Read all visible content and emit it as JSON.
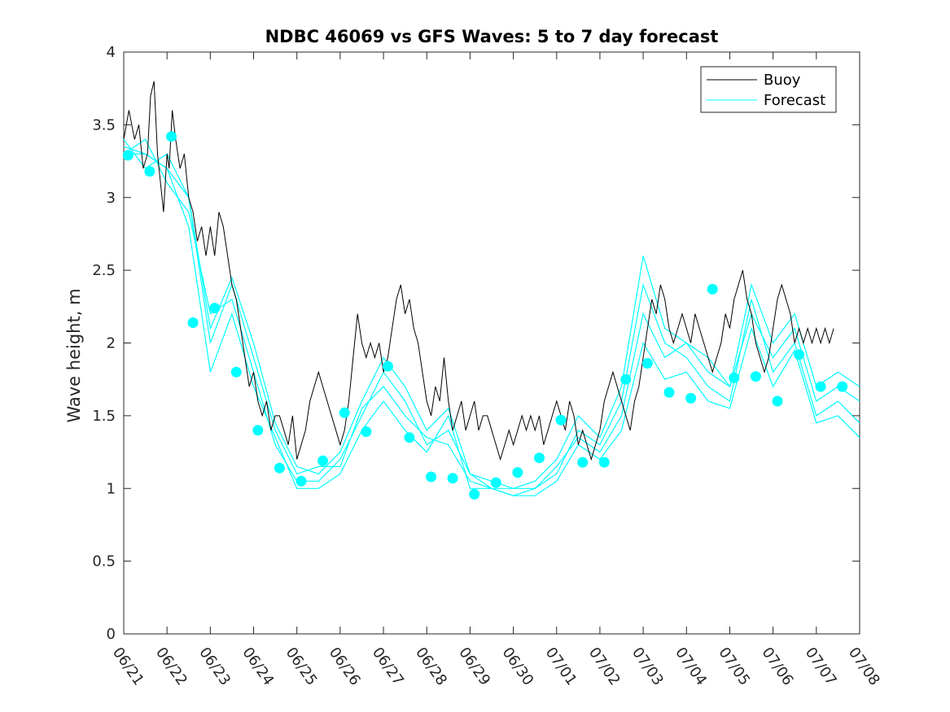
{
  "chart_data": {
    "type": "line",
    "title": "NDBC 46069 vs GFS Waves: 5 to 7 day forecast",
    "xlabel": "",
    "ylabel": "Wave height, m",
    "ylim": [
      0,
      4
    ],
    "yticks": [
      0,
      0.5,
      1,
      1.5,
      2,
      2.5,
      3,
      3.5,
      4
    ],
    "ytick_labels": [
      "0",
      "0.5",
      "1",
      "1.5",
      "2",
      "2.5",
      "3",
      "3.5",
      "4"
    ],
    "x_unit": "day offset from 06/21",
    "xlim": [
      0,
      17
    ],
    "xtick_labels": [
      "06/21",
      "06/22",
      "06/23",
      "06/24",
      "06/25",
      "06/26",
      "06/27",
      "06/28",
      "06/29",
      "06/30",
      "07/01",
      "07/02",
      "07/03",
      "07/04",
      "07/05",
      "07/06",
      "07/07",
      "07/08"
    ],
    "grid": false,
    "legend": {
      "position": "top-right",
      "entries": [
        {
          "label": "Buoy",
          "color": "#000000"
        },
        {
          "label": "Forecast",
          "color": "#00ffff"
        }
      ]
    },
    "colors": {
      "buoy": "#000000",
      "forecast": "#00ffff"
    },
    "buoy": {
      "name": "Buoy",
      "points": [
        [
          0.0,
          3.4
        ],
        [
          0.12,
          3.6
        ],
        [
          0.25,
          3.4
        ],
        [
          0.35,
          3.5
        ],
        [
          0.45,
          3.2
        ],
        [
          0.55,
          3.3
        ],
        [
          0.62,
          3.7
        ],
        [
          0.7,
          3.8
        ],
        [
          0.78,
          3.3
        ],
        [
          0.85,
          3.1
        ],
        [
          0.92,
          2.9
        ],
        [
          1.0,
          3.3
        ],
        [
          1.05,
          3.2
        ],
        [
          1.12,
          3.6
        ],
        [
          1.2,
          3.4
        ],
        [
          1.3,
          3.2
        ],
        [
          1.4,
          3.3
        ],
        [
          1.5,
          3.0
        ],
        [
          1.6,
          2.9
        ],
        [
          1.7,
          2.7
        ],
        [
          1.8,
          2.8
        ],
        [
          1.9,
          2.6
        ],
        [
          2.0,
          2.8
        ],
        [
          2.1,
          2.6
        ],
        [
          2.2,
          2.9
        ],
        [
          2.3,
          2.8
        ],
        [
          2.4,
          2.6
        ],
        [
          2.5,
          2.4
        ],
        [
          2.6,
          2.3
        ],
        [
          2.7,
          2.1
        ],
        [
          2.8,
          1.9
        ],
        [
          2.9,
          1.7
        ],
        [
          3.0,
          1.8
        ],
        [
          3.1,
          1.6
        ],
        [
          3.2,
          1.5
        ],
        [
          3.3,
          1.6
        ],
        [
          3.4,
          1.4
        ],
        [
          3.5,
          1.5
        ],
        [
          3.6,
          1.5
        ],
        [
          3.7,
          1.4
        ],
        [
          3.8,
          1.3
        ],
        [
          3.9,
          1.5
        ],
        [
          4.0,
          1.2
        ],
        [
          4.1,
          1.3
        ],
        [
          4.2,
          1.4
        ],
        [
          4.3,
          1.6
        ],
        [
          4.4,
          1.7
        ],
        [
          4.5,
          1.8
        ],
        [
          4.6,
          1.7
        ],
        [
          4.7,
          1.6
        ],
        [
          4.8,
          1.5
        ],
        [
          4.9,
          1.4
        ],
        [
          5.0,
          1.3
        ],
        [
          5.1,
          1.4
        ],
        [
          5.2,
          1.6
        ],
        [
          5.3,
          1.9
        ],
        [
          5.4,
          2.2
        ],
        [
          5.5,
          2.0
        ],
        [
          5.6,
          1.9
        ],
        [
          5.7,
          2.0
        ],
        [
          5.8,
          1.9
        ],
        [
          5.9,
          2.0
        ],
        [
          6.0,
          1.8
        ],
        [
          6.1,
          1.9
        ],
        [
          6.2,
          2.1
        ],
        [
          6.3,
          2.3
        ],
        [
          6.4,
          2.4
        ],
        [
          6.5,
          2.2
        ],
        [
          6.6,
          2.3
        ],
        [
          6.7,
          2.1
        ],
        [
          6.8,
          2.0
        ],
        [
          6.9,
          1.8
        ],
        [
          7.0,
          1.6
        ],
        [
          7.1,
          1.5
        ],
        [
          7.2,
          1.7
        ],
        [
          7.3,
          1.6
        ],
        [
          7.4,
          1.9
        ],
        [
          7.5,
          1.6
        ],
        [
          7.6,
          1.4
        ],
        [
          7.7,
          1.5
        ],
        [
          7.8,
          1.6
        ],
        [
          7.9,
          1.4
        ],
        [
          8.0,
          1.5
        ],
        [
          8.1,
          1.6
        ],
        [
          8.2,
          1.4
        ],
        [
          8.3,
          1.5
        ],
        [
          8.4,
          1.5
        ],
        [
          8.5,
          1.4
        ],
        [
          8.6,
          1.3
        ],
        [
          8.7,
          1.2
        ],
        [
          8.8,
          1.3
        ],
        [
          8.9,
          1.4
        ],
        [
          9.0,
          1.3
        ],
        [
          9.1,
          1.4
        ],
        [
          9.2,
          1.5
        ],
        [
          9.3,
          1.4
        ],
        [
          9.4,
          1.5
        ],
        [
          9.5,
          1.4
        ],
        [
          9.6,
          1.5
        ],
        [
          9.7,
          1.3
        ],
        [
          9.8,
          1.4
        ],
        [
          9.9,
          1.5
        ],
        [
          10.0,
          1.6
        ],
        [
          10.1,
          1.5
        ],
        [
          10.2,
          1.4
        ],
        [
          10.3,
          1.6
        ],
        [
          10.4,
          1.5
        ],
        [
          10.5,
          1.3
        ],
        [
          10.6,
          1.4
        ],
        [
          10.7,
          1.3
        ],
        [
          10.8,
          1.2
        ],
        [
          10.9,
          1.3
        ],
        [
          11.0,
          1.4
        ],
        [
          11.1,
          1.6
        ],
        [
          11.2,
          1.7
        ],
        [
          11.3,
          1.8
        ],
        [
          11.4,
          1.7
        ],
        [
          11.5,
          1.6
        ],
        [
          11.6,
          1.5
        ],
        [
          11.7,
          1.4
        ],
        [
          11.8,
          1.6
        ],
        [
          11.9,
          1.7
        ],
        [
          12.0,
          1.9
        ],
        [
          12.1,
          2.1
        ],
        [
          12.2,
          2.3
        ],
        [
          12.3,
          2.2
        ],
        [
          12.4,
          2.4
        ],
        [
          12.5,
          2.3
        ],
        [
          12.6,
          2.1
        ],
        [
          12.7,
          2.0
        ],
        [
          12.8,
          2.1
        ],
        [
          12.9,
          2.2
        ],
        [
          13.0,
          2.1
        ],
        [
          13.1,
          2.0
        ],
        [
          13.2,
          2.2
        ],
        [
          13.3,
          2.1
        ],
        [
          13.4,
          2.0
        ],
        [
          13.5,
          1.9
        ],
        [
          13.6,
          1.8
        ],
        [
          13.7,
          1.9
        ],
        [
          13.8,
          2.0
        ],
        [
          13.9,
          2.2
        ],
        [
          14.0,
          2.1
        ],
        [
          14.1,
          2.3
        ],
        [
          14.2,
          2.4
        ],
        [
          14.3,
          2.5
        ],
        [
          14.4,
          2.3
        ],
        [
          14.5,
          2.2
        ],
        [
          14.6,
          2.0
        ],
        [
          14.7,
          1.9
        ],
        [
          14.8,
          1.8
        ],
        [
          14.9,
          1.9
        ],
        [
          15.0,
          2.1
        ],
        [
          15.1,
          2.3
        ],
        [
          15.2,
          2.4
        ],
        [
          15.3,
          2.3
        ],
        [
          15.4,
          2.2
        ],
        [
          15.5,
          2.0
        ],
        [
          15.6,
          2.1
        ],
        [
          15.7,
          2.0
        ],
        [
          15.8,
          2.1
        ],
        [
          15.9,
          2.0
        ],
        [
          16.0,
          2.1
        ],
        [
          16.1,
          2.0
        ],
        [
          16.2,
          2.1
        ],
        [
          16.3,
          2.0
        ],
        [
          16.4,
          2.1
        ]
      ]
    },
    "forecast": {
      "name": "Forecast",
      "runs": [
        {
          "x": [
            0.0,
            0.5,
            1.0,
            1.5,
            2.0,
            2.5,
            3.0,
            3.5,
            4.0,
            4.5,
            5.0,
            5.5,
            6.0,
            6.5,
            7.0,
            7.5,
            8.0,
            8.5,
            9.0,
            9.5,
            10.0,
            10.5,
            11.0,
            11.5,
            12.0,
            12.5,
            13.0,
            13.5,
            14.0,
            14.5,
            15.0,
            15.5,
            16.0,
            16.5,
            17.0
          ],
          "y": [
            3.3,
            3.4,
            3.1,
            2.9,
            2.2,
            2.3,
            1.8,
            1.3,
            1.05,
            1.05,
            1.2,
            1.5,
            1.8,
            1.6,
            1.3,
            1.4,
            1.1,
            1.0,
            1.0,
            1.0,
            1.1,
            1.4,
            1.3,
            1.6,
            2.4,
            2.0,
            1.9,
            1.7,
            1.6,
            2.3,
            1.8,
            2.0,
            1.5,
            1.6,
            1.45
          ]
        },
        {
          "x": [
            0.0,
            0.5,
            1.0,
            1.5,
            2.0,
            2.5,
            3.0,
            3.5,
            4.0,
            4.5,
            5.0,
            5.5,
            6.0,
            6.5,
            7.0,
            7.5,
            8.0,
            8.5,
            9.0,
            9.5,
            10.0,
            10.5,
            11.0,
            11.5,
            12.0,
            12.5,
            13.0,
            13.5,
            14.0,
            14.5,
            15.0,
            15.5,
            16.0,
            16.5,
            17.0
          ],
          "y": [
            3.4,
            3.2,
            3.3,
            3.0,
            2.0,
            2.4,
            1.9,
            1.4,
            1.1,
            1.15,
            1.15,
            1.55,
            1.7,
            1.5,
            1.35,
            1.3,
            1.05,
            1.0,
            0.95,
            1.0,
            1.15,
            1.35,
            1.25,
            1.5,
            2.2,
            1.9,
            2.0,
            1.8,
            1.7,
            2.2,
            1.9,
            2.1,
            1.6,
            1.7,
            1.6
          ]
        },
        {
          "x": [
            0.0,
            0.5,
            1.0,
            1.5,
            2.0,
            2.5,
            3.0,
            3.5,
            4.0,
            4.5,
            5.0,
            5.5,
            6.0,
            6.5,
            7.0,
            7.5,
            8.0,
            8.5,
            9.0,
            9.5,
            10.0,
            10.5,
            11.0,
            11.5,
            12.0,
            12.5,
            13.0,
            13.5,
            14.0,
            14.5,
            15.0,
            15.5,
            16.0,
            16.5,
            17.0
          ],
          "y": [
            3.3,
            3.3,
            3.2,
            2.8,
            1.8,
            2.2,
            1.7,
            1.35,
            1.0,
            1.0,
            1.1,
            1.4,
            1.6,
            1.4,
            1.25,
            1.5,
            1.0,
            1.0,
            0.95,
            0.95,
            1.05,
            1.3,
            1.2,
            1.4,
            2.0,
            1.75,
            1.8,
            1.6,
            1.55,
            2.1,
            1.7,
            1.95,
            1.45,
            1.5,
            1.35
          ]
        },
        {
          "x": [
            0.0,
            0.5,
            1.0,
            1.5,
            2.0,
            2.5,
            3.0,
            3.5,
            4.0,
            4.5,
            5.0,
            5.5,
            6.0,
            6.5,
            7.0,
            7.5,
            8.0,
            8.5,
            9.0,
            9.5,
            10.0,
            10.5,
            11.0,
            11.5,
            12.0,
            12.5,
            13.0,
            13.5,
            14.0,
            14.5,
            15.0,
            15.5,
            16.0,
            16.5,
            17.0
          ],
          "y": [
            3.35,
            3.3,
            3.2,
            3.0,
            2.1,
            2.45,
            2.0,
            1.45,
            1.15,
            1.1,
            1.25,
            1.6,
            1.9,
            1.7,
            1.4,
            1.55,
            1.1,
            1.05,
            1.0,
            1.05,
            1.2,
            1.5,
            1.35,
            1.7,
            2.6,
            2.1,
            2.0,
            1.9,
            1.7,
            2.4,
            2.0,
            2.2,
            1.7,
            1.8,
            1.7
          ]
        }
      ],
      "markers": {
        "x": [
          0.1,
          0.6,
          1.1,
          1.6,
          2.1,
          2.6,
          3.1,
          3.6,
          4.1,
          4.6,
          5.1,
          5.6,
          6.1,
          6.6,
          7.1,
          7.6,
          8.1,
          8.6,
          9.1,
          9.6,
          10.1,
          10.6,
          11.1,
          11.6,
          12.1,
          12.6,
          13.1,
          13.6,
          14.1,
          14.6,
          15.1,
          15.6,
          16.1,
          16.6
        ],
        "y": [
          3.29,
          3.18,
          3.42,
          2.14,
          2.24,
          1.8,
          1.4,
          1.14,
          1.05,
          1.19,
          1.52,
          1.39,
          1.84,
          1.35,
          1.08,
          1.07,
          0.96,
          1.04,
          1.11,
          1.21,
          1.47,
          1.18,
          1.18,
          1.75,
          1.86,
          1.66,
          1.62,
          2.37,
          1.76,
          1.77,
          1.6,
          1.92,
          1.7,
          1.7
        ]
      }
    }
  }
}
